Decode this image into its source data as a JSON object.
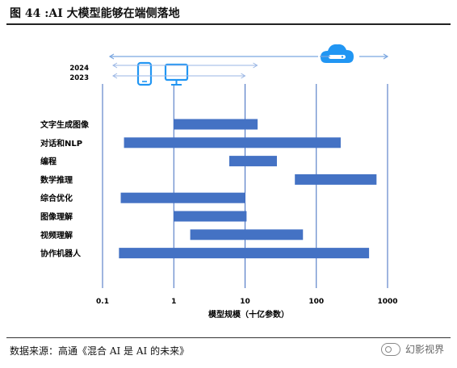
{
  "page": {
    "title": "图 44 :AI 大模型能够在端侧落地",
    "source": "数据来源：高通《混合 AI 是 AI 的未来》",
    "watermark": "幻影视界"
  },
  "chart_data": {
    "type": "bar",
    "orientation": "horizontal-range",
    "xscale": "log",
    "xlim": [
      0.1,
      1000
    ],
    "xticks": [
      0.1,
      1,
      10,
      100,
      1000
    ],
    "xtick_labels": [
      "0.1",
      "1",
      "10",
      "100",
      "1000"
    ],
    "xlabel": "模型规模（十亿参数）",
    "grid": "vertical-at-major-ticks",
    "bar_color": "#4472c4",
    "categories": [
      "文字生成图像",
      "对话和NLP",
      "编程",
      "数学推理",
      "综合优化",
      "图像理解",
      "视频理解",
      "协作机器人"
    ],
    "ranges": [
      {
        "start": 1,
        "end": 15
      },
      {
        "start": 0.2,
        "end": 220
      },
      {
        "start": 6,
        "end": 28
      },
      {
        "start": 50,
        "end": 700
      },
      {
        "start": 0.18,
        "end": 10
      },
      {
        "start": 1,
        "end": 10.5
      },
      {
        "start": 1.7,
        "end": 65
      },
      {
        "start": 0.17,
        "end": 550
      }
    ],
    "legend": {
      "years": [
        "2024",
        "2023"
      ],
      "arrows": [
        {
          "year": "2024",
          "device": "phone-and-pc",
          "reach": 10
        },
        {
          "year": "2023",
          "device": "phone-and-pc",
          "reach": 10
        },
        {
          "year": "2024",
          "device": "cloud",
          "reach": 1000
        }
      ],
      "icon_color": "#2196f3"
    }
  }
}
